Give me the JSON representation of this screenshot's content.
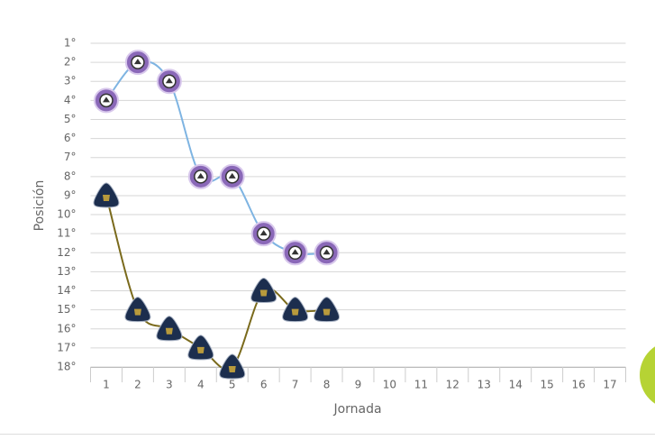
{
  "chart_data": {
    "type": "line",
    "x_label": "Jornada",
    "y_label": "Posición",
    "x": [
      1,
      2,
      3,
      4,
      5,
      6,
      7,
      8
    ],
    "series": [
      {
        "color": "#7eb4e2",
        "marker_color": "#8a68b8",
        "values": [
          4,
          2,
          3,
          8,
          8,
          11,
          12,
          12
        ]
      },
      {
        "color": "#7a6a1c",
        "marker_color": "#1c2e4e",
        "values": [
          9,
          15,
          16,
          17,
          18,
          14,
          15,
          15
        ]
      }
    ],
    "xlim": [
      0.5,
      17.5
    ],
    "xticks": [
      1,
      2,
      3,
      4,
      5,
      6,
      7,
      8,
      9,
      10,
      11,
      12,
      13,
      14,
      15,
      16,
      17
    ],
    "ylim": [
      18,
      1
    ],
    "yticks": [
      {
        "value": 1,
        "label": "1°"
      },
      {
        "value": 2,
        "label": "2°"
      },
      {
        "value": 3,
        "label": "3°"
      },
      {
        "value": 4,
        "label": "4°"
      },
      {
        "value": 5,
        "label": "5°"
      },
      {
        "value": 6,
        "label": "6°"
      },
      {
        "value": 7,
        "label": "7°"
      },
      {
        "value": 8,
        "label": "8°"
      },
      {
        "value": 9,
        "label": "9°"
      },
      {
        "value": 10,
        "label": "10°"
      },
      {
        "value": 11,
        "label": "11°"
      },
      {
        "value": 12,
        "label": "12°"
      },
      {
        "value": 13,
        "label": "13°"
      },
      {
        "value": 14,
        "label": "14°"
      },
      {
        "value": 15,
        "label": "15°"
      },
      {
        "value": 16,
        "label": "16°"
      },
      {
        "value": 17,
        "label": "17°"
      },
      {
        "value": 18,
        "label": "18°"
      }
    ],
    "grid": true
  }
}
